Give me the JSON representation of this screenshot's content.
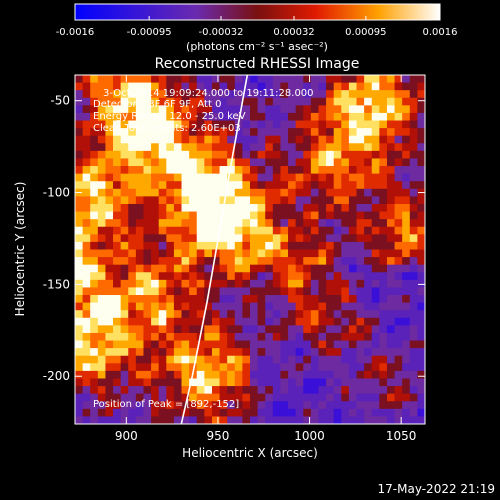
{
  "colorbar": {
    "ticks": [
      "-0.0016",
      "-0.00095",
      "-0.00032",
      "0.00032",
      "0.00095",
      "0.0016"
    ],
    "tick_values": [
      -0.0016,
      -0.00095,
      -0.00032,
      0.00032,
      0.00095,
      0.0016
    ],
    "range": [
      -0.0016,
      0.0016
    ],
    "units_label": "(photons cm⁻² s⁻¹ asec⁻²)"
  },
  "annotations": {
    "time": "3-Oct-2014 19:09:24.000 to 19:11:28.000",
    "detectors": "Detectors: 3F 6F 9F, Att 0",
    "energy": "Energy Range: 12.0 - 25.0 keV",
    "clean": "Clean    Total counts: 2.60E+03",
    "peak": "Position of Peak = [892,-152]"
  },
  "footer_timestamp": "17-May-2022 21:19",
  "chart_data": {
    "type": "heatmap",
    "title": "Reconstructed RHESSI Image",
    "xlabel": "Heliocentric X (arcsec)",
    "ylabel": "Heliocentric Y (arcsec)",
    "xlim": [
      872,
      1063
    ],
    "ylim": [
      -226,
      -36
    ],
    "x_ticks": [
      900,
      950,
      1000,
      1050
    ],
    "y_ticks": [
      -50,
      -100,
      -150,
      -200
    ],
    "colormap": "hot-blue diverging",
    "colors": {
      "neg": "#1a00ff",
      "mid": "#6b2aa8",
      "pos_low": "#c81a10",
      "pos_high": "#fffff0"
    },
    "peak_position": [
      892,
      -152
    ],
    "limb_curve": [
      [
        966,
        -36
      ],
      [
        958,
        -80
      ],
      [
        951,
        -120
      ],
      [
        944,
        -160
      ],
      [
        936,
        -200
      ],
      [
        930,
        -226
      ]
    ]
  }
}
